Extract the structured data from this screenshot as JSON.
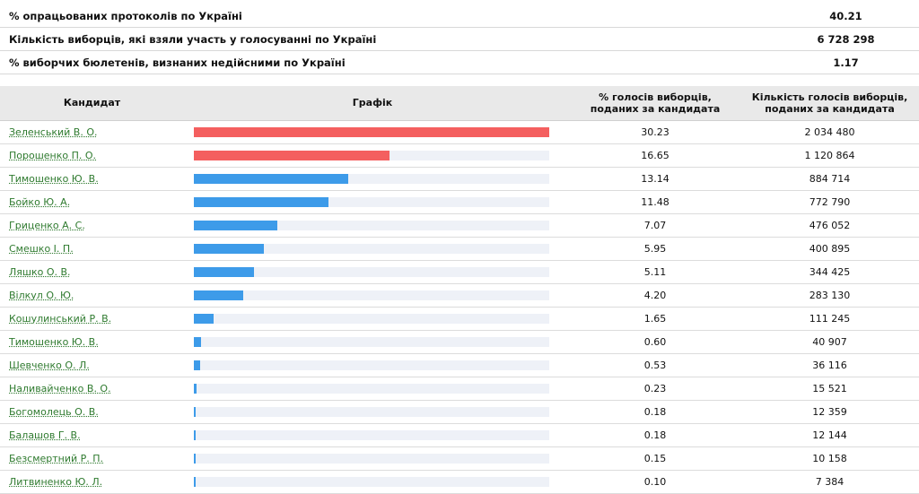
{
  "summary": [
    {
      "label": "% опрацьованих протоколів по Україні",
      "value": "40.21"
    },
    {
      "label": "Кількість виборців, які взяли участь у голосуванні по Україні",
      "value": "6 728 298"
    },
    {
      "label": "% виборчих бюлетенів, визнаних недійсними по Україні",
      "value": "1.17"
    }
  ],
  "table_header": {
    "candidate": "Кандидат",
    "chart": "Графік",
    "percent_line1": "% голосів виборців,",
    "percent_line2": "поданих за кандидата",
    "count_line1": "Кількість голосів виборців,",
    "count_line2": "поданих за кандидата"
  },
  "colors": {
    "top2": "#f45f5f",
    "others": "#3d9be9",
    "track": "#eef1f7",
    "link": "#2e7a2e"
  },
  "chart_data": {
    "type": "bar",
    "orientation": "horizontal",
    "categories": [
      "Зеленський В. О.",
      "Порошенко П. О.",
      "Тимошенко Ю. В.",
      "Бойко Ю. А.",
      "Гриценко А. С.",
      "Смешко І. П.",
      "Ляшко О. В.",
      "Вілкул О. Ю.",
      "Кошулинський Р. В.",
      "Тимошенко Ю. В.",
      "Шевченко О. Л.",
      "Наливайченко В. О.",
      "Богомолець О. В.",
      "Балашов Г. В.",
      "Безсмертний Р. П.",
      "Литвиненко Ю. Л."
    ],
    "values": [
      30.23,
      16.65,
      13.14,
      11.48,
      7.07,
      5.95,
      5.11,
      4.2,
      1.65,
      0.6,
      0.53,
      0.23,
      0.18,
      0.18,
      0.15,
      0.1
    ],
    "percent_labels": [
      "30.23",
      "16.65",
      "13.14",
      "11.48",
      "7.07",
      "5.95",
      "5.11",
      "4.20",
      "1.65",
      "0.60",
      "0.53",
      "0.23",
      "0.18",
      "0.18",
      "0.15",
      "0.10"
    ],
    "counts": [
      "2 034 480",
      "1 120 864",
      "884 714",
      "772 790",
      "476 052",
      "400 895",
      "344 425",
      "283 130",
      "111 245",
      "40 907",
      "36 116",
      "15 521",
      "12 359",
      "12 144",
      "10 158",
      "7 384"
    ]
  }
}
